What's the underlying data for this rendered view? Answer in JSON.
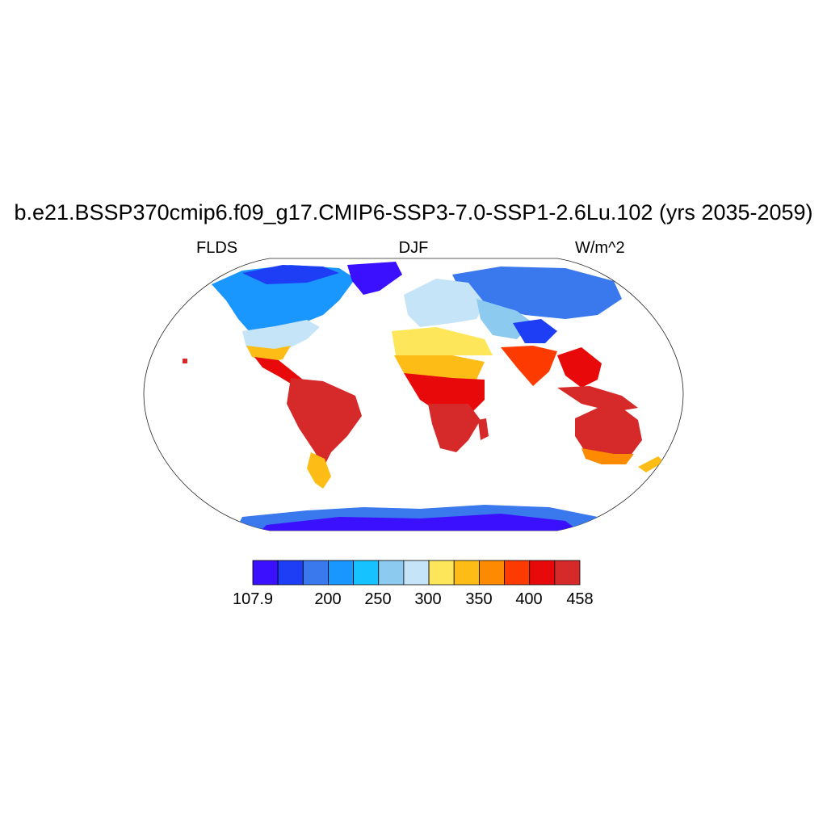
{
  "header": {
    "title": "b.e21.BSSP370cmip6.f09_g17.CMIP6-SSP3-7.0-SSP1-2.6Lu.102 (yrs 2035-2059)",
    "left_label": "FLDS",
    "center_label": "DJF",
    "right_label": "W/m^2"
  },
  "map": {
    "projection": "robinson",
    "variable": "FLDS",
    "season": "DJF",
    "regions": [
      {
        "name": "north-america-arctic",
        "level_index": 1
      },
      {
        "name": "canada",
        "level_index": 3
      },
      {
        "name": "usa",
        "level_index": 6
      },
      {
        "name": "central-america",
        "level_index": 11
      },
      {
        "name": "south-america",
        "level_index": 12
      },
      {
        "name": "patagonia",
        "level_index": 8
      },
      {
        "name": "greenland",
        "level_index": 0
      },
      {
        "name": "europe",
        "level_index": 5
      },
      {
        "name": "north-africa",
        "level_index": 8
      },
      {
        "name": "central-africa",
        "level_index": 11
      },
      {
        "name": "southern-africa",
        "level_index": 12
      },
      {
        "name": "siberia",
        "level_index": 2
      },
      {
        "name": "tibet",
        "level_index": 1
      },
      {
        "name": "india",
        "level_index": 10
      },
      {
        "name": "southeast-asia",
        "level_index": 12
      },
      {
        "name": "australia",
        "level_index": 11
      },
      {
        "name": "antarctica",
        "level_index": 0
      }
    ]
  },
  "colorbar": {
    "colors": [
      "#3b10ff",
      "#1e3ef5",
      "#3a78ee",
      "#1a96ff",
      "#16c2ff",
      "#8dcaf0",
      "#c5e4f7",
      "#fde65a",
      "#fdbd16",
      "#fd8a00",
      "#fd3a00",
      "#e80a0a",
      "#d62a2a"
    ],
    "tick_labels": [
      {
        "text": "107.9",
        "edge": 0
      },
      {
        "text": "200",
        "edge": 2
      },
      {
        "text": "250",
        "edge": 3
      },
      {
        "text": "300",
        "edge": 4
      },
      {
        "text": "350",
        "edge": 5
      },
      {
        "text": "400",
        "edge": 6
      },
      {
        "text": "458",
        "edge": 7
      }
    ]
  }
}
